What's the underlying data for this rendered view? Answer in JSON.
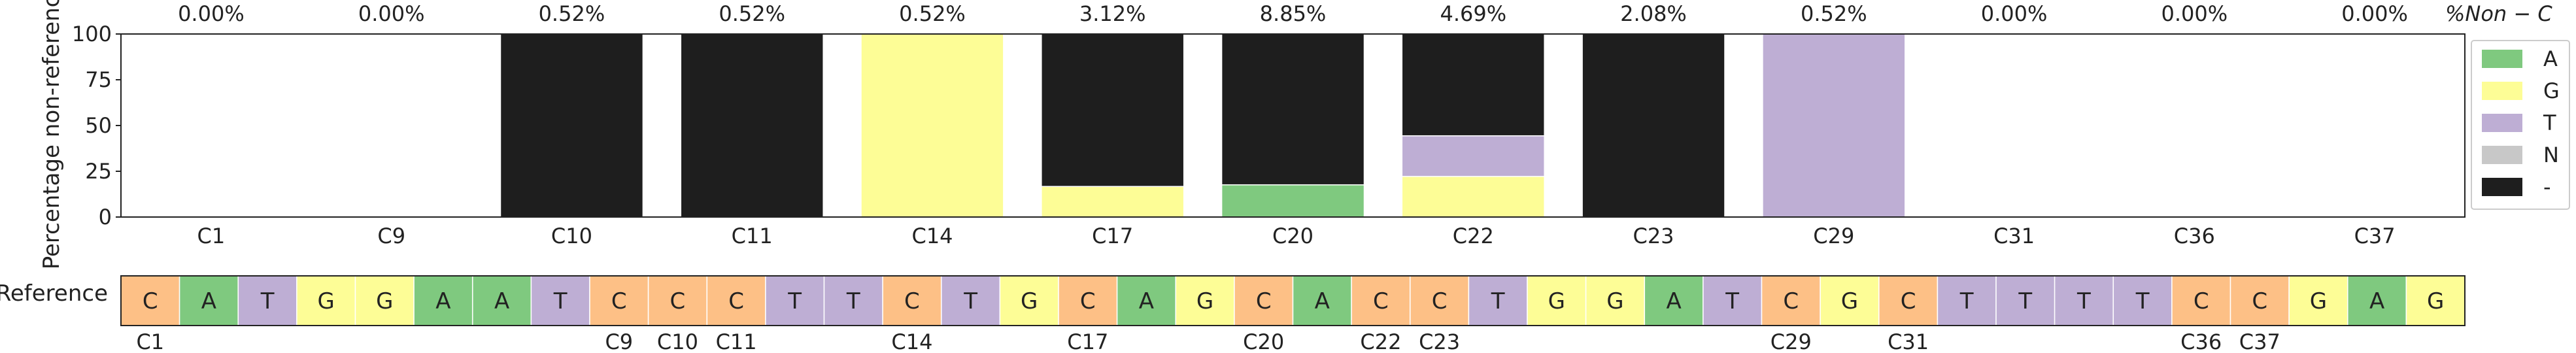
{
  "chart_data": [
    {
      "type": "bar",
      "stacked": true,
      "ylabel": "Percentage non-reference",
      "ylim": [
        0,
        100
      ],
      "yticks": [
        0,
        25,
        50,
        75,
        100
      ],
      "categories": [
        "C1",
        "C9",
        "C10",
        "C11",
        "C14",
        "C17",
        "C20",
        "C22",
        "C23",
        "C29",
        "C31",
        "C36",
        "C37"
      ],
      "top_labels": [
        "0.00%",
        "0.00%",
        "0.52%",
        "0.52%",
        "0.52%",
        "3.12%",
        "8.85%",
        "4.69%",
        "2.08%",
        "0.52%",
        "0.00%",
        "0.00%",
        "0.00%"
      ],
      "top_axis_label": "%Non − C",
      "legend_position": "right",
      "series": [
        {
          "name": "A",
          "color": "#7fc97f",
          "values": [
            0,
            0,
            0,
            0,
            0,
            0,
            17.6,
            0,
            0,
            0,
            0,
            0,
            0
          ]
        },
        {
          "name": "G",
          "color": "#fdfd96",
          "values": [
            0,
            0,
            0,
            0,
            100,
            16.7,
            0,
            22.2,
            0,
            0,
            0,
            0,
            0
          ]
        },
        {
          "name": "T",
          "color": "#beaed4",
          "values": [
            0,
            0,
            0,
            0,
            0,
            0,
            0,
            22.2,
            0,
            100,
            0,
            0,
            0
          ]
        },
        {
          "name": "N",
          "color": "#c8c8c8",
          "values": [
            0,
            0,
            0,
            0,
            0,
            0,
            0,
            0,
            0,
            0,
            0,
            0,
            0
          ]
        },
        {
          "name": "-",
          "color": "#1e1e1e",
          "values": [
            0,
            0,
            100,
            100,
            0,
            83.3,
            82.4,
            55.6,
            100,
            0,
            0,
            0,
            0
          ]
        }
      ]
    },
    {
      "type": "table",
      "row_label": "Reference",
      "sequence": [
        "C",
        "A",
        "T",
        "G",
        "G",
        "A",
        "A",
        "T",
        "C",
        "C",
        "C",
        "T",
        "T",
        "C",
        "T",
        "G",
        "C",
        "A",
        "G",
        "C",
        "A",
        "C",
        "C",
        "T",
        "G",
        "G",
        "A",
        "T",
        "C",
        "G",
        "C",
        "T",
        "T",
        "T",
        "T",
        "C",
        "C",
        "G",
        "A",
        "G"
      ],
      "base_colors": {
        "A": "#7fc97f",
        "C": "#fdc086",
        "G": "#fdfd96",
        "T": "#beaed4"
      },
      "position_labels": [
        {
          "index": 0,
          "label": "C1"
        },
        {
          "index": 8,
          "label": "C9"
        },
        {
          "index": 9,
          "label": "C10"
        },
        {
          "index": 10,
          "label": "C11"
        },
        {
          "index": 13,
          "label": "C14"
        },
        {
          "index": 16,
          "label": "C17"
        },
        {
          "index": 19,
          "label": "C20"
        },
        {
          "index": 21,
          "label": "C22"
        },
        {
          "index": 22,
          "label": "C23"
        },
        {
          "index": 28,
          "label": "C29"
        },
        {
          "index": 30,
          "label": "C31"
        },
        {
          "index": 35,
          "label": "C36"
        },
        {
          "index": 36,
          "label": "C37"
        }
      ]
    }
  ]
}
